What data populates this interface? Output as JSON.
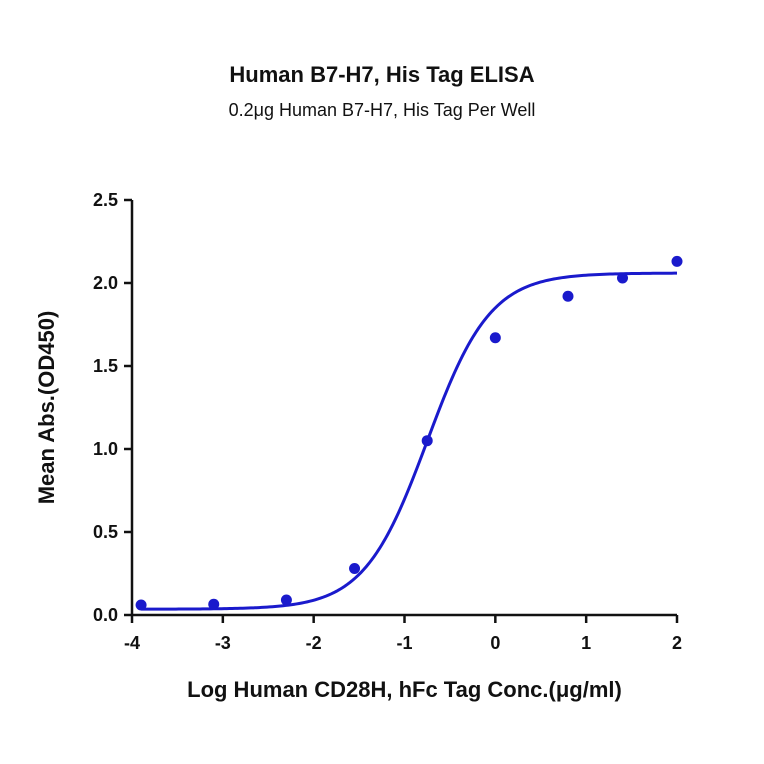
{
  "chart_data": {
    "type": "scatter",
    "title": "Human B7-H7, His Tag ELISA",
    "subtitle": "0.2μg Human B7-H7, His Tag Per Well",
    "xlabel": "Log Human CD28H, hFc Tag Conc.(μg/ml)",
    "ylabel": "Mean Abs.(OD450)",
    "xlim": [
      -4,
      2
    ],
    "ylim": [
      0,
      2.5
    ],
    "xticks": [
      -4,
      -3,
      -2,
      -1,
      0,
      1,
      2
    ],
    "xtick_labels": [
      "-4",
      "-3",
      "-2",
      "-1",
      "0",
      "1",
      "2"
    ],
    "yticks": [
      0,
      0.5,
      1.0,
      1.5,
      2.0,
      2.5
    ],
    "ytick_labels": [
      "0.0",
      "0.5",
      "1.0",
      "1.5",
      "2.0",
      "2.5"
    ],
    "grid": false,
    "series": [
      {
        "marker_color": "#1a1acc",
        "points": [
          {
            "x": -3.9,
            "y": 0.06
          },
          {
            "x": -3.1,
            "y": 0.065
          },
          {
            "x": -2.3,
            "y": 0.09
          },
          {
            "x": -1.55,
            "y": 0.28
          },
          {
            "x": -0.75,
            "y": 1.05
          },
          {
            "x": 0.0,
            "y": 1.67
          },
          {
            "x": 0.8,
            "y": 1.92
          },
          {
            "x": 1.4,
            "y": 2.03
          },
          {
            "x": 2.0,
            "y": 2.13
          }
        ],
        "fit": {
          "model": "4PL",
          "bottom": 0.035,
          "top": 2.06,
          "logEC50": -0.75,
          "hill": 1.25,
          "line_color": "#1a1acc"
        }
      }
    ]
  }
}
